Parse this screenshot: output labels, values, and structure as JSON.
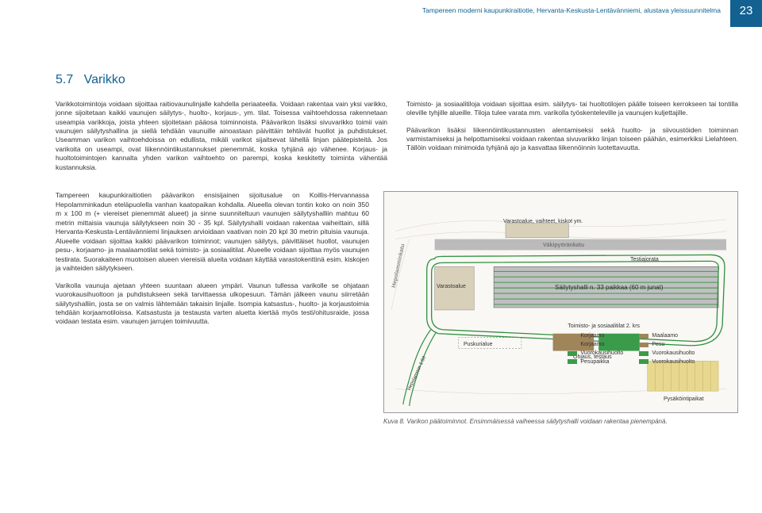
{
  "page": {
    "header_title": "Tampereen moderni kaupunkiraitiotie, Hervanta-Keskusta-Lentävänniemi, alustava yleissuunnitelma",
    "page_number": "23"
  },
  "section": {
    "number": "5.7",
    "title": "Varikko"
  },
  "body": {
    "col1_p1": "Varikkotoimintoja voidaan sijoittaa raitiovaunulinjalle kahdella periaateella. Voidaan rakentaa vain yksi varikko, jonne sijoitetaan kaikki vaunujen säilytys-, huolto-, korjaus-, ym. tilat. Toisessa vaihtoehdossa rakennetaan useampia varikkoja, joista yhteen sijoitetaan pääosa toiminnoista. Päävarikon lisäksi sivuvarikko toimii vain vaunujen säilytyshallina ja siellä tehdään vaunuille ainoastaan päivittäin tehtävät huollot ja puhdistukset. Useamman varikon vaihtoehdoissa on edullista, mikäli varikot sijaitsevat lähellä linjan päätepisteitä. Jos varikoita on useampi, ovat liikennöintikustannukset pienemmät, koska tyhjänä ajo vähenee. Korjaus- ja huoltotoimintojen kannalta yhden varikon vaihtoehto on parempi, koska keskitetty toiminta vähentää kustannuksia.",
    "col2_p1": "Toimisto- ja sosiaalitiloja voidaan sijoittaa esim. säilytys- tai huoltotilojen päälle toiseen kerrokseen tai tontilla oleville tyhjille alueille. Tiloja tulee varata mm. varikolla työskenteleville ja vaunujen kuljettajille.",
    "col2_p2": "Päävarikon lisäksi liikennöintikustannusten alentamiseksi sekä huolto- ja siivoustöiden toiminnan varmistamiseksi ja helpottamiseksi voidaan rakentaa sivuvarikko linjan toiseen päähän, esimerkiksi Lielahteen. Tällöin voidaan minimoida tyhjänä ajo ja kasvattaa liikennöinnin luotettavuutta.",
    "lower_p1": "Tampereen kaupunkiraitiotien päävarikon ensisijainen sijoitusalue on Koillis-Hervannassa Hepolamminkadun eteläpuolella vanhan kaatopaikan kohdalla. Alueella olevan tontin koko on noin 350 m x 100 m (+ viereiset pienemmät alueet) ja sinne suunniteltuun vaunujen säilytyshalliin mahtuu 60 metrin mittaisia vaunuja säilytykseen noin 30 - 35 kpl. Säilytyshalli voidaan rakentaa vaiheittain, sillä Hervanta-Keskusta-Lentävänniemi linjauksen arvioidaan vaativan noin 20 kpl 30 metrin pituisia vaunuja. Alueelle voidaan sijoittaa kaikki päävarikon toiminnot; vaunujen säilytys, päivittäiset huollot, vaunujen pesu-, korjaamo- ja maalaamotilat sekä toimisto- ja sosiaalitilat. Alueelle voidaan sijoittaa myös vaunujen testirata. Suorakaiteen muotoisen alueen viereisiä alueita voidaan käyttää varastokenttinä esim. kiskojen ja vaihteiden säilytykseen.",
    "lower_p2": "Varikolla vaunuja ajetaan yhteen suuntaan alueen ympäri. Vaunun tullessa varikolle se ohjataan vuorokausihuoltoon ja puhdistukseen sekä tarvittaessa ulkopesuun. Tämän jälkeen vaunu siirretään säilytyshalliin, josta se on valmis lähtemään takaisin linjalle. Isompia katsastus-, huolto- ja korjaustoimia tehdään korjaamotiloissa. Katsastusta ja testausta varten aluetta kiertää myös testi/ohitusraide, jossa voidaan testata esim. vaunujen jarrujen toimivuutta."
  },
  "figure": {
    "labels": {
      "varastoalue_top": "Varastoalue, vaihteet, kiskot ym.",
      "street_top": "Väkipyöränkatu",
      "testiajorata": "Testiajorata",
      "varastoalue_left": "Varastoalue",
      "hall_label": "Säilytyshalli n. 33 paikkaa (60 m junat)",
      "street_left": "Hepolamminkatu",
      "puskurialue": "Puskurialue",
      "toimisto_title": "Toimisto- ja sosiaalitilat 2. krs",
      "ohjaus": "Ohjaus, testaus",
      "pysakointi": "Pysäköintipaikat",
      "ramp_label": "Hepolammin\n1:50"
    },
    "legend": {
      "rows": [
        {
          "color": "#a0845a",
          "label_l": "Korjaamo",
          "label_r": "Maalaamo"
        },
        {
          "color": "#a0845a",
          "label_l": "Korjaamo",
          "label_r": "Pesu"
        },
        {
          "color": "#3a9b4a",
          "label_l": "Vuorokausihuolto",
          "label_r": "Vuorokausihuolto"
        },
        {
          "color": "#3a9b4a",
          "label_l": "Pesupaikka",
          "label_r": "Vuorokausihuolto"
        }
      ]
    },
    "caption": "Kuva 8. Varikon päätoiminnot. Ensimmäisessä vaiheessa säilytyshalli voidaan rakentaa pienempänä.",
    "colors": {
      "track": "#2f8f3f",
      "hall_fill": "#c0c0c0",
      "varasto_fill": "#d8d0b8",
      "road": "#bbbbbb",
      "building_brown": "#a0845a",
      "building_green": "#3a9b4a",
      "parking": "#e8d88f"
    }
  }
}
